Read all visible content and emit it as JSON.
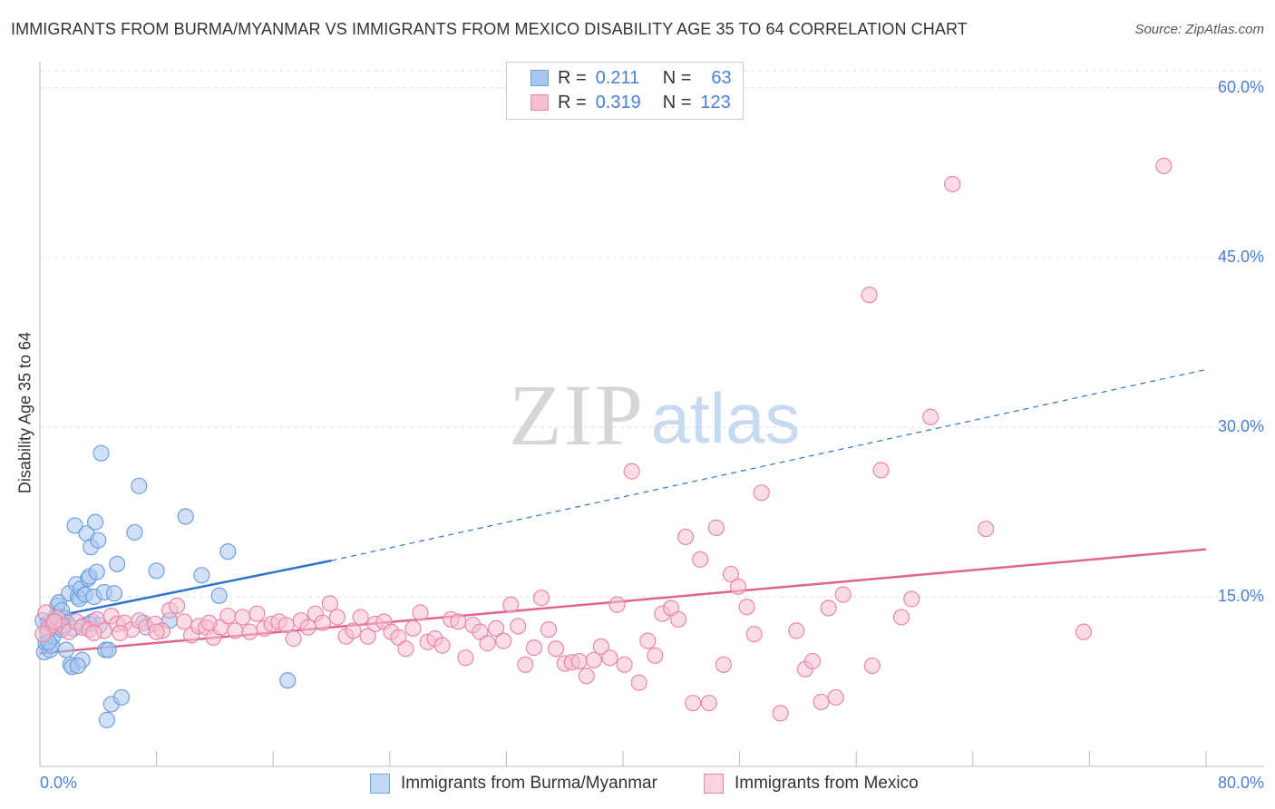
{
  "title": "IMMIGRANTS FROM BURMA/MYANMAR VS IMMIGRANTS FROM MEXICO DISABILITY AGE 35 TO 64 CORRELATION CHART",
  "source": "Source: ZipAtlas.com",
  "watermark": {
    "zip": "ZIP",
    "atlas": "atlas"
  },
  "colors": {
    "blue_fill": "#a9c6ee",
    "blue_stroke": "#6f9fde",
    "blue_line": "#2f73d0",
    "pink_fill": "#f6bfd0",
    "pink_stroke": "#e887a8",
    "pink_line": "#e0648f",
    "tick_text": "#4a7fd4",
    "grid": "#dddddd"
  },
  "legend": {
    "r_label": "R =",
    "n_label": "N =",
    "rows": [
      {
        "r": "0.211",
        "n": "63",
        "series": "blue"
      },
      {
        "r": "0.319",
        "n": "123",
        "series": "pink"
      }
    ]
  },
  "chart_data": {
    "type": "scatter",
    "title": "IMMIGRANTS FROM BURMA/MYANMAR VS IMMIGRANTS FROM MEXICO DISABILITY AGE 35 TO 64 CORRELATION CHART",
    "xlabel": "",
    "ylabel": "Disability Age 35 to 64",
    "xlim": [
      0,
      80
    ],
    "ylim": [
      0,
      60
    ],
    "x_tick_labels": [
      "0.0%",
      "80.0%"
    ],
    "y_ticks": [
      15,
      30,
      45,
      60
    ],
    "y_tick_labels": [
      "15.0%",
      "30.0%",
      "45.0%",
      "60.0%"
    ],
    "grid": "horizontal dashed",
    "legend_position": "top-center",
    "series": [
      {
        "name": "Immigrants from Burma/Myanmar",
        "color": "blue",
        "trend": {
          "x0": 0,
          "y0": 13.0,
          "x1": 20,
          "y1": 18.2,
          "extend_to": 80,
          "extend_y": 35.1
        },
        "points": [
          [
            0.3,
            10.1
          ],
          [
            0.4,
            10.9
          ],
          [
            0.5,
            11.9
          ],
          [
            0.6,
            12.7
          ],
          [
            0.7,
            10.3
          ],
          [
            0.8,
            10.7
          ],
          [
            0.9,
            11.5
          ],
          [
            1.0,
            12.9
          ],
          [
            1.1,
            13.3
          ],
          [
            1.2,
            14.2
          ],
          [
            1.3,
            14.5
          ],
          [
            1.4,
            12.3
          ],
          [
            1.5,
            13.8
          ],
          [
            1.6,
            12.5
          ],
          [
            1.7,
            13.1
          ],
          [
            1.8,
            10.3
          ],
          [
            1.9,
            12.7
          ],
          [
            2.0,
            15.3
          ],
          [
            2.1,
            9.0
          ],
          [
            2.2,
            8.8
          ],
          [
            2.3,
            12.2
          ],
          [
            2.4,
            21.3
          ],
          [
            2.5,
            16.1
          ],
          [
            2.6,
            15.0
          ],
          [
            2.7,
            14.8
          ],
          [
            2.8,
            15.7
          ],
          [
            2.9,
            9.4
          ],
          [
            3.0,
            12.5
          ],
          [
            3.1,
            15.2
          ],
          [
            3.2,
            20.6
          ],
          [
            3.3,
            16.6
          ],
          [
            3.4,
            16.8
          ],
          [
            3.5,
            19.4
          ],
          [
            3.6,
            12.8
          ],
          [
            3.7,
            15.0
          ],
          [
            3.8,
            21.6
          ],
          [
            3.9,
            17.2
          ],
          [
            4.0,
            20.0
          ],
          [
            4.1,
            12.5
          ],
          [
            4.2,
            27.7
          ],
          [
            4.4,
            15.4
          ],
          [
            4.5,
            10.3
          ],
          [
            4.6,
            4.1
          ],
          [
            4.7,
            10.3
          ],
          [
            4.9,
            5.5
          ],
          [
            5.1,
            15.3
          ],
          [
            5.3,
            17.9
          ],
          [
            5.6,
            6.1
          ],
          [
            6.5,
            20.7
          ],
          [
            6.8,
            24.8
          ],
          [
            7.1,
            12.7
          ],
          [
            8.0,
            17.3
          ],
          [
            8.9,
            12.9
          ],
          [
            10.0,
            22.1
          ],
          [
            11.1,
            16.9
          ],
          [
            12.3,
            15.1
          ],
          [
            12.9,
            19.0
          ],
          [
            17.0,
            7.6
          ],
          [
            2.6,
            8.9
          ],
          [
            0.2,
            12.9
          ],
          [
            1.5,
            12.1
          ],
          [
            0.6,
            11.0
          ],
          [
            3.4,
            12.6
          ]
        ]
      },
      {
        "name": "Immigrants from Mexico",
        "color": "pink",
        "trend": {
          "x0": 0,
          "y0": 10.0,
          "x1": 80,
          "y1": 19.2
        },
        "points": [
          [
            0.4,
            13.6
          ],
          [
            0.6,
            12.2
          ],
          [
            0.9,
            12.5
          ],
          [
            1.2,
            13.1
          ],
          [
            1.6,
            12.4
          ],
          [
            2.0,
            11.9
          ],
          [
            2.5,
            12.8
          ],
          [
            2.9,
            12.3
          ],
          [
            3.4,
            12.1
          ],
          [
            3.9,
            13.0
          ],
          [
            4.4,
            12.0
          ],
          [
            4.9,
            13.3
          ],
          [
            5.3,
            12.6
          ],
          [
            5.8,
            12.7
          ],
          [
            6.3,
            12.1
          ],
          [
            6.8,
            12.9
          ],
          [
            7.3,
            12.3
          ],
          [
            7.9,
            12.6
          ],
          [
            8.4,
            12.0
          ],
          [
            8.9,
            13.8
          ],
          [
            9.4,
            14.2
          ],
          [
            9.9,
            12.8
          ],
          [
            10.4,
            11.6
          ],
          [
            10.9,
            12.4
          ],
          [
            11.4,
            12.3
          ],
          [
            11.9,
            11.4
          ],
          [
            12.4,
            12.3
          ],
          [
            12.9,
            13.3
          ],
          [
            13.4,
            12.0
          ],
          [
            13.9,
            13.2
          ],
          [
            14.4,
            11.9
          ],
          [
            14.9,
            13.5
          ],
          [
            15.4,
            12.2
          ],
          [
            15.9,
            12.6
          ],
          [
            16.4,
            12.8
          ],
          [
            16.9,
            12.5
          ],
          [
            17.4,
            11.3
          ],
          [
            17.9,
            12.9
          ],
          [
            18.4,
            12.3
          ],
          [
            18.9,
            13.5
          ],
          [
            19.4,
            12.7
          ],
          [
            19.9,
            14.4
          ],
          [
            20.4,
            13.2
          ],
          [
            21.0,
            11.5
          ],
          [
            21.5,
            12.0
          ],
          [
            22.0,
            13.2
          ],
          [
            22.5,
            11.5
          ],
          [
            23.0,
            12.6
          ],
          [
            23.6,
            12.8
          ],
          [
            24.1,
            11.9
          ],
          [
            24.6,
            11.4
          ],
          [
            25.1,
            10.4
          ],
          [
            25.6,
            12.2
          ],
          [
            26.1,
            13.6
          ],
          [
            26.6,
            11.0
          ],
          [
            27.1,
            11.3
          ],
          [
            27.6,
            10.7
          ],
          [
            28.2,
            13.0
          ],
          [
            28.7,
            12.8
          ],
          [
            29.2,
            9.6
          ],
          [
            29.7,
            12.5
          ],
          [
            30.2,
            11.9
          ],
          [
            30.7,
            10.9
          ],
          [
            31.3,
            12.2
          ],
          [
            31.8,
            11.1
          ],
          [
            32.3,
            14.3
          ],
          [
            32.8,
            12.4
          ],
          [
            33.3,
            9.0
          ],
          [
            33.9,
            10.5
          ],
          [
            34.4,
            14.9
          ],
          [
            34.9,
            12.1
          ],
          [
            35.4,
            10.4
          ],
          [
            36.0,
            9.1
          ],
          [
            36.5,
            9.2
          ],
          [
            37.0,
            9.3
          ],
          [
            37.5,
            8.0
          ],
          [
            38.0,
            9.4
          ],
          [
            38.5,
            10.6
          ],
          [
            39.1,
            9.6
          ],
          [
            39.6,
            14.3
          ],
          [
            40.1,
            9.0
          ],
          [
            40.6,
            26.1
          ],
          [
            41.1,
            7.4
          ],
          [
            41.7,
            11.1
          ],
          [
            42.2,
            9.8
          ],
          [
            42.7,
            13.5
          ],
          [
            43.3,
            14.0
          ],
          [
            43.8,
            13.0
          ],
          [
            44.3,
            20.3
          ],
          [
            44.8,
            5.6
          ],
          [
            45.3,
            18.3
          ],
          [
            45.9,
            5.6
          ],
          [
            46.4,
            21.1
          ],
          [
            46.9,
            9.0
          ],
          [
            47.4,
            17.0
          ],
          [
            47.9,
            15.9
          ],
          [
            48.5,
            14.1
          ],
          [
            49.0,
            11.7
          ],
          [
            49.5,
            24.2
          ],
          [
            50.8,
            4.7
          ],
          [
            51.9,
            12.0
          ],
          [
            52.5,
            8.6
          ],
          [
            53.0,
            9.3
          ],
          [
            53.6,
            5.7
          ],
          [
            54.1,
            14.0
          ],
          [
            54.6,
            6.1
          ],
          [
            55.1,
            15.2
          ],
          [
            56.9,
            41.7
          ],
          [
            57.1,
            8.9
          ],
          [
            57.7,
            26.2
          ],
          [
            59.1,
            13.2
          ],
          [
            59.8,
            14.8
          ],
          [
            61.1,
            30.9
          ],
          [
            62.6,
            51.5
          ],
          [
            64.9,
            21.0
          ],
          [
            71.6,
            11.9
          ],
          [
            77.1,
            53.1
          ],
          [
            0.2,
            11.7
          ],
          [
            1.0,
            12.8
          ],
          [
            5.5,
            11.8
          ],
          [
            8.0,
            11.9
          ],
          [
            11.6,
            12.7
          ],
          [
            3.7,
            11.8
          ]
        ]
      }
    ]
  },
  "bottom_legend": [
    {
      "label": "Immigrants from Burma/Myanmar",
      "series": "blue"
    },
    {
      "label": "Immigrants from Mexico",
      "series": "pink"
    }
  ]
}
